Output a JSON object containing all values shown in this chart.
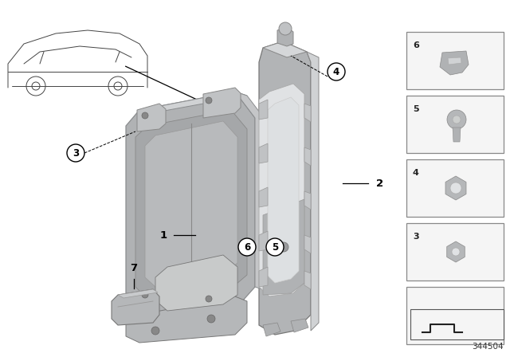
{
  "bg_color": "#ffffff",
  "part_number": "344504",
  "line_color": "#000000",
  "gray_tcu": "#b0b2b4",
  "gray_tcu_dark": "#8a8c8e",
  "gray_tcu_light": "#d0d2d4",
  "gray_frame": "#b8babb",
  "gray_frame_light": "#d5d6d7",
  "gray_frame_shiny": "#e8e9ea",
  "sidebar_box_color": "#f5f5f5",
  "sidebar_border": "#aaaaaa",
  "sidebar_label_color": "#222222",
  "label_line_color": "#000000",
  "circle_edge": "#000000",
  "circle_fill": "#ffffff",
  "car_line_color": "#444444"
}
